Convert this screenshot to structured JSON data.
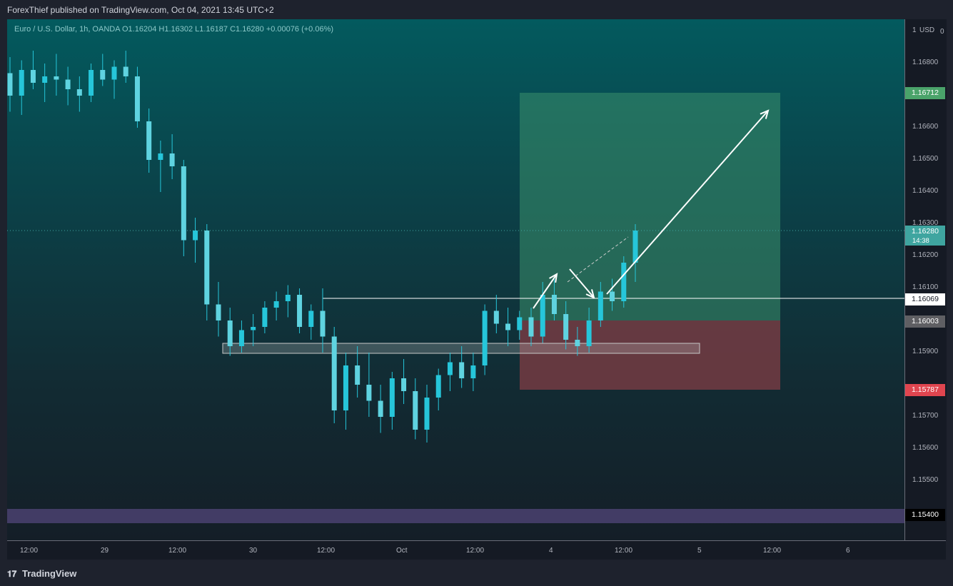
{
  "header": {
    "publisher_text": "ForexThief published on TradingView.com, Oct 04, 2021 13:45 UTC+2"
  },
  "legend": {
    "text": "Euro / U.S. Dollar, 1h, OANDA  O1.16204  H1.16302  L1.16187  C1.16280  +0.00076 (+0.06%)"
  },
  "price_axis": {
    "currency": "USD",
    "top_label": "1",
    "top_label_2": "0"
  },
  "footer": {
    "brand": "TradingView",
    "logo_glyph": "𝟏𝟕"
  },
  "colors": {
    "bull": "#26c6da",
    "bear": "#26c6da",
    "target_zone": "#3b8f6b",
    "stop_zone": "#7a3c44",
    "support_box": "#c8c8c8",
    "band": "#4a4270",
    "tag_target": "#4aa36a",
    "tag_current": "#3fa5a0",
    "tag_entry_line": "#ffffff",
    "tag_entry": "#5f5f63",
    "tag_stop": "#e0454f",
    "tag_band": "#000000"
  },
  "tags": {
    "target": "1.16712",
    "current": "1.16280",
    "countdown": "14:38",
    "line": "1.16069",
    "entry": "1.16003",
    "stop": "1.15787",
    "band": "1.15400"
  },
  "chart_data": {
    "type": "candlestick",
    "symbol": "Euro / U.S. Dollar",
    "interval": "1h",
    "source": "OANDA",
    "ohlc_last": {
      "open": 1.16204,
      "high": 1.16302,
      "low": 1.16187,
      "close": 1.1628,
      "change": 0.00076,
      "change_pct": 0.06
    },
    "y_ticks": [
      "1.16800",
      "1.16600",
      "1.16500",
      "1.16400",
      "1.16300",
      "1.16200",
      "1.16100",
      "1.15900",
      "1.15700",
      "1.15600",
      "1.15500"
    ],
    "x_ticks": [
      "12:00",
      "29",
      "12:00",
      "30",
      "12:00",
      "Oct",
      "12:00",
      "4",
      "12:00",
      "5",
      "12:00",
      "6"
    ],
    "ylim": [
      1.1535,
      1.1705
    ],
    "candles": [
      [
        1.1677,
        1.1682,
        1.1665,
        1.167
      ],
      [
        1.167,
        1.1681,
        1.1664,
        1.1678
      ],
      [
        1.1678,
        1.1684,
        1.1672,
        1.1674
      ],
      [
        1.1674,
        1.168,
        1.1668,
        1.1676
      ],
      [
        1.1676,
        1.1683,
        1.167,
        1.1675
      ],
      [
        1.1675,
        1.1679,
        1.1667,
        1.1672
      ],
      [
        1.1672,
        1.1676,
        1.1665,
        1.167
      ],
      [
        1.167,
        1.168,
        1.1668,
        1.1678
      ],
      [
        1.1678,
        1.1683,
        1.1673,
        1.1675
      ],
      [
        1.1675,
        1.1681,
        1.1669,
        1.1679
      ],
      [
        1.1679,
        1.1684,
        1.1674,
        1.1676
      ],
      [
        1.1676,
        1.1679,
        1.166,
        1.1662
      ],
      [
        1.1662,
        1.1666,
        1.1646,
        1.165
      ],
      [
        1.165,
        1.1656,
        1.164,
        1.1652
      ],
      [
        1.1652,
        1.1658,
        1.1644,
        1.1648
      ],
      [
        1.1648,
        1.165,
        1.162,
        1.1625
      ],
      [
        1.1625,
        1.1632,
        1.1618,
        1.1628
      ],
      [
        1.1628,
        1.163,
        1.16,
        1.1605
      ],
      [
        1.1605,
        1.1612,
        1.1595,
        1.16
      ],
      [
        1.16,
        1.1604,
        1.1589,
        1.1592
      ],
      [
        1.1592,
        1.16,
        1.159,
        1.1597
      ],
      [
        1.1597,
        1.1602,
        1.1592,
        1.1598
      ],
      [
        1.1598,
        1.1606,
        1.1596,
        1.1604
      ],
      [
        1.1604,
        1.1609,
        1.16,
        1.1606
      ],
      [
        1.1606,
        1.1611,
        1.1601,
        1.1608
      ],
      [
        1.1608,
        1.161,
        1.1596,
        1.1598
      ],
      [
        1.1598,
        1.1605,
        1.1594,
        1.1603
      ],
      [
        1.1603,
        1.161,
        1.159,
        1.1595
      ],
      [
        1.1595,
        1.1598,
        1.1568,
        1.1572
      ],
      [
        1.1572,
        1.159,
        1.1566,
        1.1586
      ],
      [
        1.1586,
        1.1592,
        1.1576,
        1.158
      ],
      [
        1.158,
        1.159,
        1.157,
        1.1575
      ],
      [
        1.1575,
        1.158,
        1.1565,
        1.157
      ],
      [
        1.157,
        1.1584,
        1.1566,
        1.1582
      ],
      [
        1.1582,
        1.1588,
        1.1574,
        1.1578
      ],
      [
        1.1578,
        1.1582,
        1.1563,
        1.1566
      ],
      [
        1.1566,
        1.158,
        1.1562,
        1.1576
      ],
      [
        1.1576,
        1.1585,
        1.1572,
        1.1583
      ],
      [
        1.1583,
        1.159,
        1.1578,
        1.1587
      ],
      [
        1.1587,
        1.1592,
        1.1579,
        1.1582
      ],
      [
        1.1582,
        1.159,
        1.1578,
        1.1586
      ],
      [
        1.1586,
        1.1605,
        1.1583,
        1.1603
      ],
      [
        1.1603,
        1.1608,
        1.1596,
        1.1599
      ],
      [
        1.1599,
        1.1604,
        1.1592,
        1.1597
      ],
      [
        1.1597,
        1.1603,
        1.1594,
        1.1601
      ],
      [
        1.1601,
        1.1604,
        1.1592,
        1.1595
      ],
      [
        1.1595,
        1.1612,
        1.1593,
        1.1608
      ],
      [
        1.1608,
        1.1613,
        1.16,
        1.1602
      ],
      [
        1.1602,
        1.1606,
        1.1591,
        1.1594
      ],
      [
        1.1594,
        1.1598,
        1.1589,
        1.1592
      ],
      [
        1.1592,
        1.1604,
        1.159,
        1.16
      ],
      [
        1.16,
        1.1612,
        1.1598,
        1.1609
      ],
      [
        1.1609,
        1.1613,
        1.1603,
        1.1606
      ],
      [
        1.1606,
        1.162,
        1.1604,
        1.1618
      ],
      [
        1.1618,
        1.163,
        1.1612,
        1.1628
      ]
    ]
  }
}
